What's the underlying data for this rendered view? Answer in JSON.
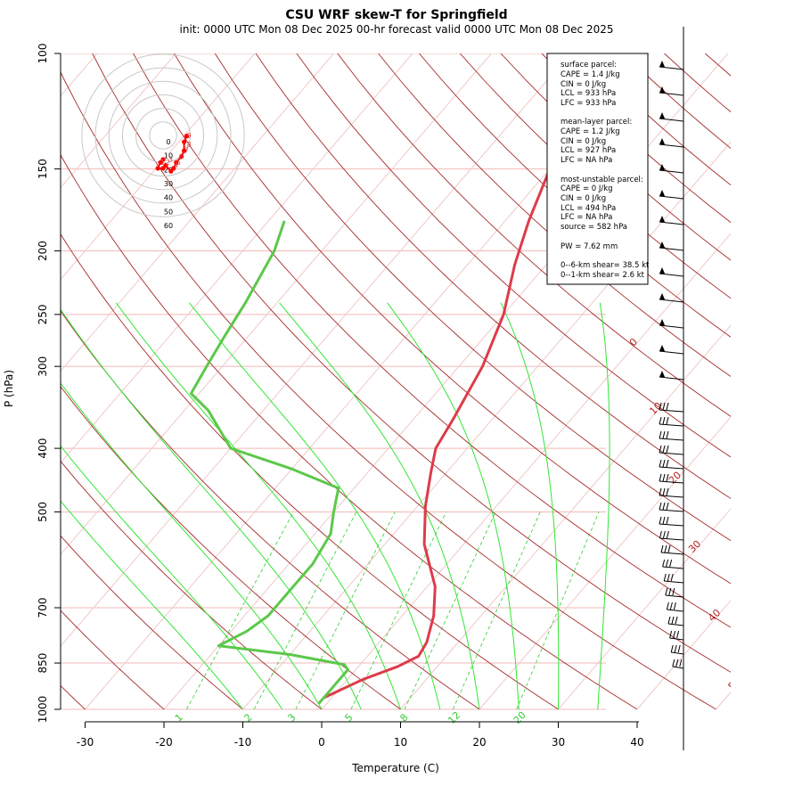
{
  "chart_data": {
    "type": "line",
    "title": "CSU WRF skew-T for Springfield",
    "subtitle": "init: 0000 UTC Mon 08 Dec 2025    00-hr forecast valid 0000 UTC Mon 08 Dec 2025",
    "xlabel": "Temperature (C)",
    "ylabel": "P (hPa)",
    "xlim": [
      -33,
      45
    ],
    "ylim": [
      1000,
      100
    ],
    "y_scale": "log",
    "x_ticks": [
      -30,
      -20,
      -10,
      0,
      10,
      20,
      30,
      40
    ],
    "y_ticks": [
      100,
      150,
      200,
      250,
      300,
      400,
      500,
      700,
      850,
      1000
    ],
    "isotherm_labels": [
      "-10",
      "0",
      "10",
      "20",
      "30",
      "40",
      "50"
    ],
    "mixing_ratio_labels": [
      "1",
      "2",
      "3",
      "5",
      "8",
      "12",
      "20"
    ],
    "series": [
      {
        "name": "Temperature",
        "color": "#dc3c4a",
        "points": [
          [
            -1,
            960
          ],
          [
            2,
            900
          ],
          [
            5,
            860
          ],
          [
            6.5,
            830
          ],
          [
            6,
            790
          ],
          [
            4,
            720
          ],
          [
            1,
            650
          ],
          [
            -5,
            560
          ],
          [
            -9,
            490
          ],
          [
            -12,
            435
          ],
          [
            -14,
            400
          ],
          [
            -15,
            360
          ],
          [
            -17,
            300
          ],
          [
            -20,
            250
          ],
          [
            -24,
            210
          ],
          [
            -27,
            180
          ],
          [
            -30,
            150
          ],
          [
            -34,
            130
          ],
          [
            -36,
            110
          ]
        ]
      },
      {
        "name": "Dewpoint",
        "color": "#5cc84a",
        "points": [
          [
            -1,
            980
          ],
          [
            -1,
            940
          ],
          [
            -1,
            900
          ],
          [
            -1,
            870
          ],
          [
            -2,
            855
          ],
          [
            -10,
            825
          ],
          [
            -20,
            800
          ],
          [
            -18,
            760
          ],
          [
            -17,
            720
          ],
          [
            -17,
            680
          ],
          [
            -17,
            600
          ],
          [
            -18,
            540
          ],
          [
            -20,
            500
          ],
          [
            -22,
            460
          ],
          [
            -30,
            430
          ],
          [
            -40,
            400
          ],
          [
            -47,
            350
          ],
          [
            -51,
            330
          ],
          [
            -52,
            300
          ],
          [
            -53,
            270
          ],
          [
            -54,
            240
          ],
          [
            -56,
            200
          ],
          [
            -58,
            180
          ]
        ]
      }
    ],
    "hodograph": {
      "ring_labels": [
        "0",
        "10",
        "20",
        "30",
        "40",
        "50",
        "60"
      ],
      "height_labels": [
        "1",
        "2",
        "3",
        "4",
        "5",
        "6",
        "7",
        "8",
        "9"
      ],
      "color": "#ff0000"
    },
    "stats": {
      "surface": {
        "header": "surface parcel:",
        "cape": "CAPE = 1.4 J/kg",
        "cin": "CIN = 0 J/kg",
        "lcl": "LCL = 933 hPa",
        "lfc": "LFC = 933 hPa"
      },
      "mixed": {
        "header": "mean-layer parcel:",
        "cape": "CAPE = 1.2 J/kg",
        "cin": "CIN = 0 J/kg",
        "lcl": "LCL = 927 hPa",
        "lfc": "LFC = NA hPa"
      },
      "unstable": {
        "header": "most-unstable parcel:",
        "cape": "CAPE = 0 J/kg",
        "cin": "CIN = 0 J/kg",
        "lcl": "LCL = 494 hPa",
        "lfc": "LFC = NA hPa",
        "source": "source = 582 hPa"
      },
      "pw": "PW =  7.62 mm",
      "shear6": "0--6-km shear= 38.5 kt",
      "shear1": "0--1-km shear= 2.6 kt"
    },
    "grid": true
  }
}
